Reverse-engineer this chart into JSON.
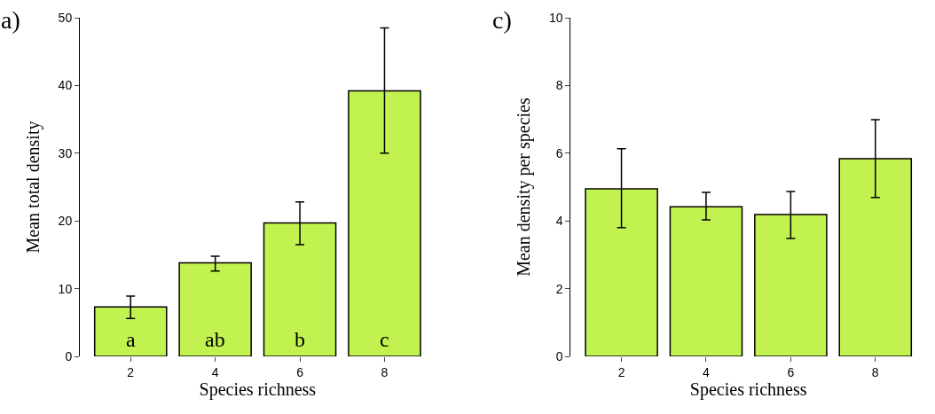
{
  "chart_data": [
    {
      "type": "bar",
      "title": "a)",
      "xlabel": "Species richness",
      "ylabel": "Mean total density",
      "categories": [
        "2",
        "4",
        "6",
        "8"
      ],
      "series": [
        {
          "color": "#c1f24f",
          "values": [
            7.3,
            13.8,
            19.7,
            39.2
          ],
          "errors": [
            [
              5.6,
              8.9
            ],
            [
              12.6,
              14.8
            ],
            [
              16.5,
              22.8
            ],
            [
              30.0,
              48.5
            ]
          ]
        }
      ],
      "ylim": [
        0,
        50
      ],
      "yticks": [
        0,
        10,
        20,
        30,
        40,
        50
      ],
      "annotations": [
        "a",
        "ab",
        "b",
        "c"
      ]
    },
    {
      "type": "bar",
      "title": "c)",
      "xlabel": "Species richness",
      "ylabel": "Mean density per species",
      "categories": [
        "2",
        "4",
        "6",
        "8"
      ],
      "series": [
        {
          "color": "#c1f24f",
          "values": [
            4.95,
            4.42,
            4.19,
            5.84
          ],
          "errors": [
            [
              3.8,
              6.13
            ],
            [
              4.03,
              4.84
            ],
            [
              3.48,
              4.87
            ],
            [
              4.69,
              6.99
            ]
          ]
        }
      ],
      "ylim": [
        0,
        10
      ],
      "yticks": [
        0,
        2,
        4,
        6,
        8,
        10
      ]
    }
  ]
}
